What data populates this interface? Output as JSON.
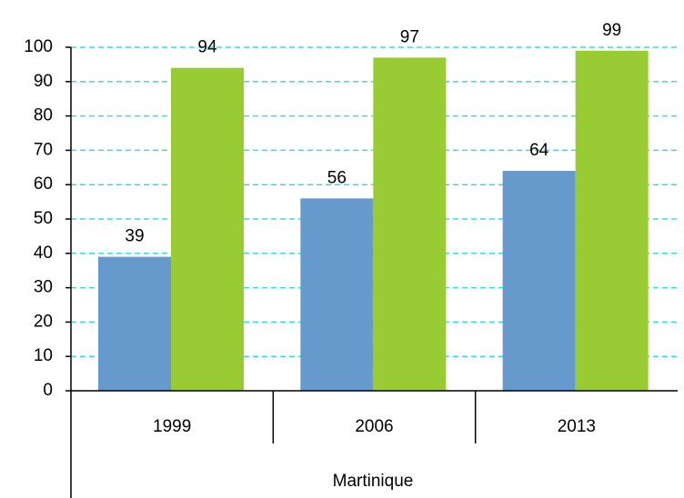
{
  "chart_data": {
    "type": "bar",
    "categories": [
      "1999",
      "2006",
      "2013"
    ],
    "group_label": "Martinique",
    "series": [
      {
        "color": "#6699cc",
        "values": [
          39,
          56,
          64
        ]
      },
      {
        "color": "#99cc33",
        "values": [
          94,
          97,
          99
        ]
      }
    ],
    "ylim": [
      0,
      100
    ],
    "yticks": [
      0,
      10,
      20,
      30,
      40,
      50,
      60,
      70,
      80,
      90,
      100
    ],
    "grid": true,
    "grid_color": "#33dddd"
  }
}
